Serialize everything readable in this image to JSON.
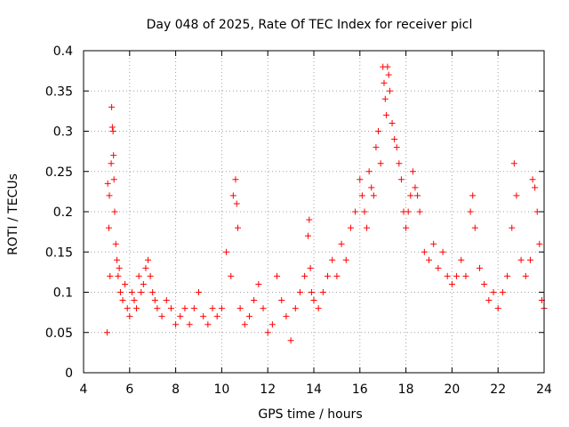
{
  "chart_data": {
    "type": "scatter",
    "title": "Day 048 of 2025, Rate Of TEC Index for receiver picl",
    "xlabel": "GPS time / hours",
    "ylabel": "ROTI / TECUs",
    "xlim": [
      4,
      24
    ],
    "ylim": [
      0,
      0.4
    ],
    "x_ticks": [
      4,
      6,
      8,
      10,
      12,
      14,
      16,
      18,
      20,
      22,
      24
    ],
    "x_tick_labels": [
      "4",
      "6",
      "8",
      "10",
      "12",
      "14",
      "16",
      "18",
      "20",
      "22",
      "24"
    ],
    "y_ticks": [
      0,
      0.05,
      0.1,
      0.15,
      0.2,
      0.25,
      0.3,
      0.35,
      0.4
    ],
    "y_tick_labels": [
      "0",
      "0.05",
      "0.1",
      "0.15",
      "0.2",
      "0.25",
      "0.3",
      "0.35",
      "0.4"
    ],
    "grid": true,
    "marker": "+",
    "color": "#ff0000",
    "series": [
      {
        "name": "ROTI",
        "x": [
          5.02,
          5.05,
          5.1,
          5.12,
          5.15,
          5.2,
          5.22,
          5.25,
          5.28,
          5.3,
          5.32,
          5.35,
          5.4,
          5.45,
          5.5,
          5.55,
          5.6,
          5.7,
          5.8,
          5.9,
          6.0,
          6.1,
          6.2,
          6.3,
          6.4,
          6.5,
          6.6,
          6.7,
          6.8,
          6.9,
          7.0,
          7.1,
          7.2,
          7.4,
          7.6,
          7.8,
          8.0,
          8.2,
          8.4,
          8.6,
          8.8,
          9.0,
          9.2,
          9.4,
          9.6,
          9.8,
          10.0,
          10.2,
          10.4,
          10.5,
          10.6,
          10.65,
          10.7,
          10.8,
          11.0,
          11.2,
          11.4,
          11.6,
          11.8,
          12.0,
          12.2,
          12.4,
          12.6,
          12.8,
          13.0,
          13.2,
          13.4,
          13.6,
          13.75,
          13.8,
          13.85,
          13.9,
          14.0,
          14.2,
          14.4,
          14.6,
          14.8,
          15.0,
          15.2,
          15.4,
          15.6,
          15.8,
          16.0,
          16.1,
          16.2,
          16.3,
          16.4,
          16.5,
          16.6,
          16.7,
          16.8,
          16.9,
          17.0,
          17.05,
          17.1,
          17.15,
          17.2,
          17.25,
          17.3,
          17.4,
          17.5,
          17.6,
          17.7,
          17.8,
          17.9,
          18.0,
          18.1,
          18.2,
          18.3,
          18.4,
          18.5,
          18.6,
          18.8,
          19.0,
          19.2,
          19.4,
          19.6,
          19.8,
          20.0,
          20.2,
          20.4,
          20.6,
          20.8,
          20.9,
          21.0,
          21.2,
          21.4,
          21.6,
          21.8,
          22.0,
          22.2,
          22.4,
          22.6,
          22.7,
          22.8,
          23.0,
          23.2,
          23.4,
          23.5,
          23.6,
          23.7,
          23.8,
          23.9,
          24.0
        ],
        "y": [
          0.05,
          0.235,
          0.18,
          0.22,
          0.12,
          0.26,
          0.33,
          0.305,
          0.3,
          0.27,
          0.24,
          0.2,
          0.16,
          0.14,
          0.12,
          0.13,
          0.1,
          0.09,
          0.11,
          0.08,
          0.07,
          0.1,
          0.09,
          0.08,
          0.12,
          0.1,
          0.11,
          0.13,
          0.14,
          0.12,
          0.1,
          0.09,
          0.08,
          0.07,
          0.09,
          0.08,
          0.06,
          0.07,
          0.08,
          0.06,
          0.08,
          0.1,
          0.07,
          0.06,
          0.08,
          0.07,
          0.08,
          0.15,
          0.12,
          0.22,
          0.24,
          0.21,
          0.18,
          0.08,
          0.06,
          0.07,
          0.09,
          0.11,
          0.08,
          0.05,
          0.06,
          0.12,
          0.09,
          0.07,
          0.04,
          0.08,
          0.1,
          0.12,
          0.17,
          0.19,
          0.13,
          0.1,
          0.09,
          0.08,
          0.1,
          0.12,
          0.14,
          0.12,
          0.16,
          0.14,
          0.18,
          0.2,
          0.24,
          0.22,
          0.2,
          0.18,
          0.25,
          0.23,
          0.22,
          0.28,
          0.3,
          0.26,
          0.38,
          0.36,
          0.34,
          0.32,
          0.38,
          0.37,
          0.35,
          0.31,
          0.29,
          0.28,
          0.26,
          0.24,
          0.2,
          0.18,
          0.2,
          0.22,
          0.25,
          0.23,
          0.22,
          0.2,
          0.15,
          0.14,
          0.16,
          0.13,
          0.15,
          0.12,
          0.11,
          0.12,
          0.14,
          0.12,
          0.2,
          0.22,
          0.18,
          0.13,
          0.11,
          0.09,
          0.1,
          0.08,
          0.1,
          0.12,
          0.18,
          0.26,
          0.22,
          0.14,
          0.12,
          0.14,
          0.24,
          0.23,
          0.2,
          0.16,
          0.09,
          0.08
        ]
      }
    ]
  }
}
